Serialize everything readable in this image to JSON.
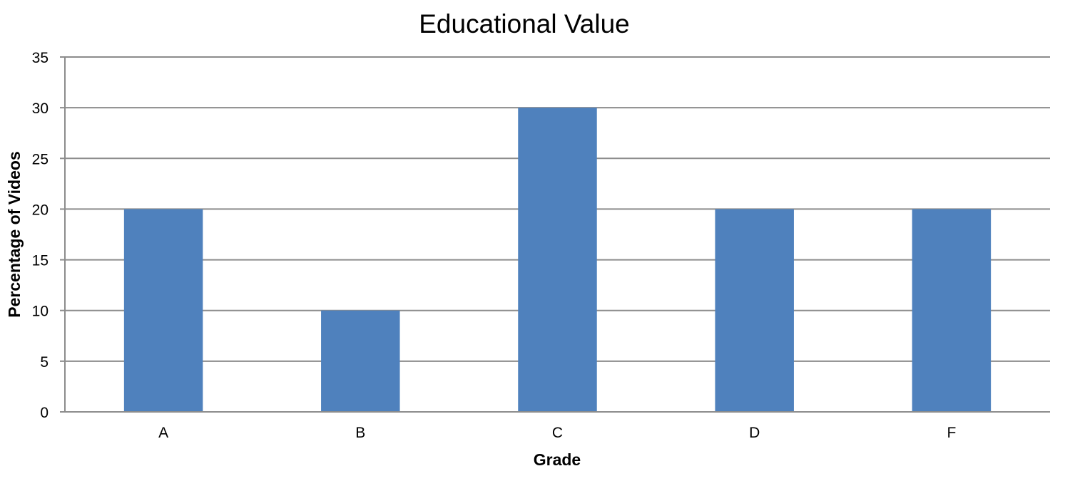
{
  "chart_data": {
    "type": "bar",
    "title": "Educational Value",
    "xlabel": "Grade",
    "ylabel": "Percentage of Videos",
    "categories": [
      "A",
      "B",
      "C",
      "D",
      "F"
    ],
    "values": [
      20,
      10,
      30,
      20,
      20
    ],
    "ylim": [
      0,
      35
    ],
    "yticks": [
      0,
      5,
      10,
      15,
      20,
      25,
      30,
      35
    ],
    "grid": true,
    "legend": "none",
    "bar_color": "#4f81bd"
  }
}
